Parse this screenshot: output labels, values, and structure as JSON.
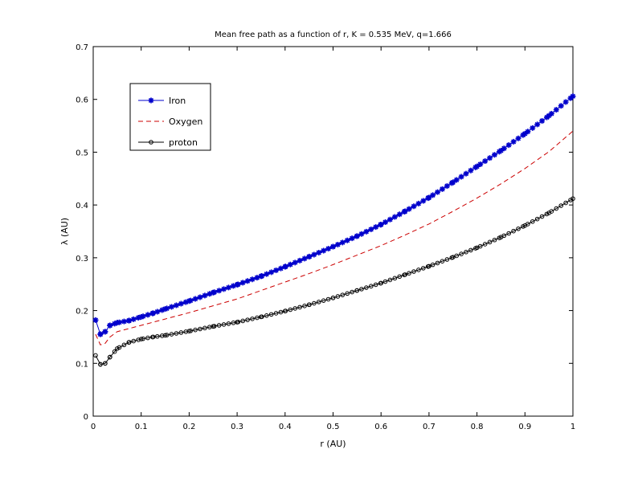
{
  "chart_data": {
    "type": "line",
    "title": "Mean free path as a function of r, K = 0.535 MeV, q=1.666",
    "xlabel": "r (AU)",
    "ylabel": "λ (AU)",
    "xlim": [
      0,
      1
    ],
    "ylim": [
      0,
      0.7
    ],
    "xticks": [
      0,
      0.1,
      0.2,
      0.3,
      0.4,
      0.5,
      0.6,
      0.7,
      0.8,
      0.9,
      1
    ],
    "yticks": [
      0,
      0.1,
      0.2,
      0.3,
      0.4,
      0.5,
      0.6,
      0.7
    ],
    "xtick_labels": [
      "0",
      "0.1",
      "0.2",
      "0.3",
      "0.4",
      "0.5",
      "0.6",
      "0.7",
      "0.8",
      "0.9",
      "1"
    ],
    "ytick_labels": [
      "0",
      "0.1",
      "0.2",
      "0.3",
      "0.4",
      "0.5",
      "0.6",
      "0.7"
    ],
    "grid": false,
    "legend_position": "top-left",
    "series": [
      {
        "name": "Iron",
        "color": "#0000cc",
        "style": "solid",
        "marker": "star",
        "x": [
          0.005,
          0.015,
          0.025,
          0.035,
          0.05,
          0.075,
          0.1,
          0.125,
          0.15,
          0.2,
          0.25,
          0.3,
          0.35,
          0.4,
          0.45,
          0.5,
          0.55,
          0.6,
          0.65,
          0.7,
          0.75,
          0.8,
          0.85,
          0.9,
          0.95,
          1.0
        ],
        "y": [
          0.182,
          0.155,
          0.16,
          0.172,
          0.177,
          0.181,
          0.188,
          0.195,
          0.203,
          0.218,
          0.234,
          0.249,
          0.265,
          0.283,
          0.302,
          0.321,
          0.341,
          0.363,
          0.388,
          0.414,
          0.443,
          0.473,
          0.503,
          0.535,
          0.569,
          0.606
        ]
      },
      {
        "name": "Oxygen",
        "color": "#cc0000",
        "style": "dashed",
        "marker": "none",
        "x": [
          0.005,
          0.015,
          0.025,
          0.035,
          0.05,
          0.075,
          0.1,
          0.125,
          0.15,
          0.2,
          0.25,
          0.3,
          0.35,
          0.4,
          0.45,
          0.5,
          0.55,
          0.6,
          0.65,
          0.7,
          0.75,
          0.8,
          0.85,
          0.9,
          0.95,
          1.0
        ],
        "y": [
          0.155,
          0.135,
          0.138,
          0.15,
          0.16,
          0.166,
          0.172,
          0.178,
          0.184,
          0.196,
          0.209,
          0.222,
          0.238,
          0.254,
          0.27,
          0.287,
          0.305,
          0.323,
          0.343,
          0.364,
          0.388,
          0.413,
          0.44,
          0.469,
          0.501,
          0.54
        ]
      },
      {
        "name": "proton",
        "color": "#000000",
        "style": "solid",
        "marker": "circle",
        "x": [
          0.005,
          0.015,
          0.025,
          0.035,
          0.05,
          0.075,
          0.1,
          0.125,
          0.15,
          0.2,
          0.25,
          0.3,
          0.35,
          0.4,
          0.45,
          0.5,
          0.55,
          0.6,
          0.65,
          0.7,
          0.75,
          0.8,
          0.85,
          0.9,
          0.95,
          1.0
        ],
        "y": [
          0.115,
          0.098,
          0.1,
          0.112,
          0.128,
          0.14,
          0.146,
          0.15,
          0.153,
          0.161,
          0.17,
          0.178,
          0.188,
          0.199,
          0.211,
          0.224,
          0.238,
          0.252,
          0.268,
          0.284,
          0.301,
          0.319,
          0.339,
          0.361,
          0.385,
          0.412
        ]
      }
    ]
  }
}
